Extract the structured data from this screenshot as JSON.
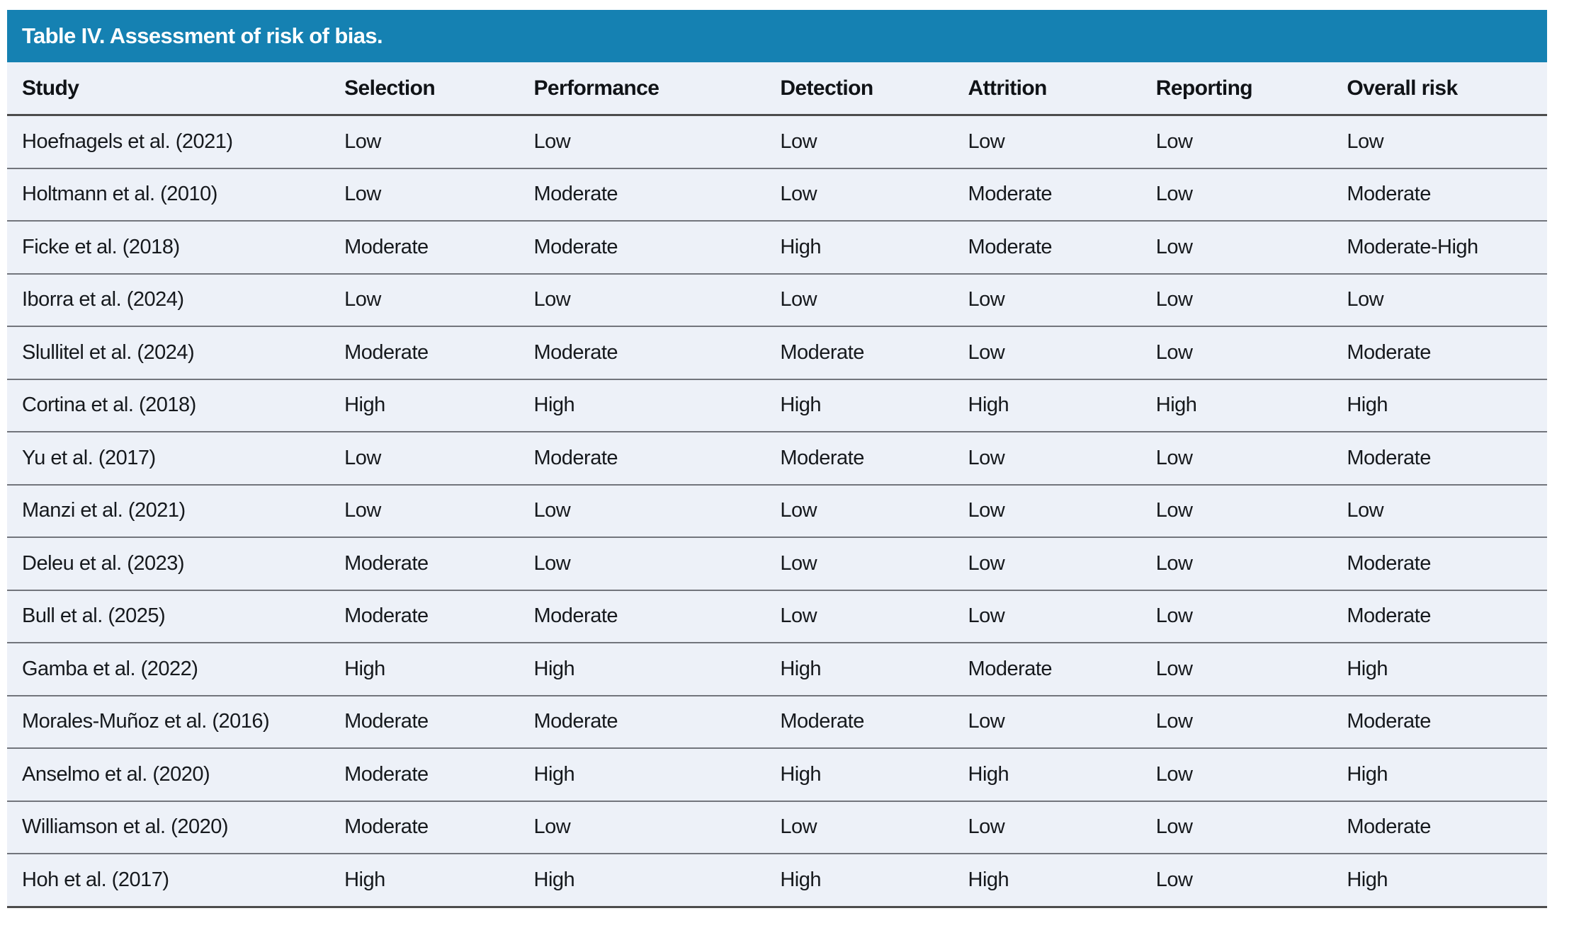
{
  "title": "Table IV. Assessment of risk of bias.",
  "colors": {
    "title_bar_background": "#1581b2",
    "title_text": "#ffffff",
    "table_background": "#edf1f8",
    "heavy_rule": "#4c4c4c",
    "row_rule": "#72757c",
    "body_text": "#16191d"
  },
  "table": {
    "columns": [
      {
        "key": "study",
        "label": "Study"
      },
      {
        "key": "selection",
        "label": "Selection"
      },
      {
        "key": "performance",
        "label": "Performance"
      },
      {
        "key": "detection",
        "label": "Detection"
      },
      {
        "key": "attrition",
        "label": "Attrition"
      },
      {
        "key": "reporting",
        "label": "Reporting"
      },
      {
        "key": "overall-risk",
        "label": "Overall risk"
      }
    ],
    "column_widths": [
      "21.9%",
      "12.3%",
      "16.0%",
      "12.2%",
      "12.2%",
      "12.4%",
      "13.0%"
    ],
    "rows": [
      [
        "Hoefnagels et al. (2021)",
        "Low",
        "Low",
        "Low",
        "Low",
        "Low",
        "Low"
      ],
      [
        "Holtmann et al. (2010)",
        "Low",
        "Moderate",
        "Low",
        "Moderate",
        "Low",
        "Moderate"
      ],
      [
        "Ficke et al. (2018)",
        "Moderate",
        "Moderate",
        "High",
        "Moderate",
        "Low",
        "Moderate-High"
      ],
      [
        "Iborra et al. (2024)",
        "Low",
        "Low",
        "Low",
        "Low",
        "Low",
        "Low"
      ],
      [
        "Slullitel et al. (2024)",
        "Moderate",
        "Moderate",
        "Moderate",
        "Low",
        "Low",
        "Moderate"
      ],
      [
        "Cortina et al. (2018)",
        "High",
        "High",
        "High",
        "High",
        "High",
        "High"
      ],
      [
        "Yu et al. (2017)",
        "Low",
        "Moderate",
        "Moderate",
        "Low",
        "Low",
        "Moderate"
      ],
      [
        "Manzi et al. (2021)",
        "Low",
        "Low",
        "Low",
        "Low",
        "Low",
        "Low"
      ],
      [
        "Deleu et al. (2023)",
        "Moderate",
        "Low",
        "Low",
        "Low",
        "Low",
        "Moderate"
      ],
      [
        "Bull et al. (2025)",
        "Moderate",
        "Moderate",
        "Low",
        "Low",
        "Low",
        "Moderate"
      ],
      [
        "Gamba et al. (2022)",
        "High",
        "High",
        "High",
        "Moderate",
        "Low",
        "High"
      ],
      [
        "Morales-Muñoz et al. (2016)",
        "Moderate",
        "Moderate",
        "Moderate",
        "Low",
        "Low",
        "Moderate"
      ],
      [
        "Anselmo et al. (2020)",
        "Moderate",
        "High",
        "High",
        "High",
        "Low",
        "High"
      ],
      [
        "Williamson et al. (2020)",
        "Moderate",
        "Low",
        "Low",
        "Low",
        "Low",
        "Moderate"
      ],
      [
        "Hoh et al. (2017)",
        "High",
        "High",
        "High",
        "High",
        "Low",
        "High"
      ]
    ]
  }
}
